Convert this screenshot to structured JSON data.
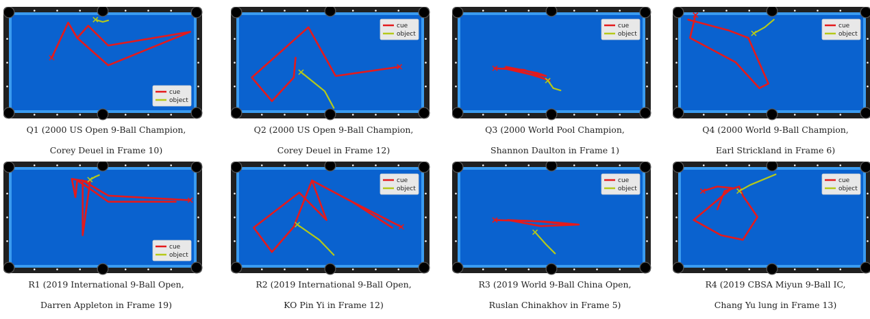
{
  "legend": {
    "cue": "cue",
    "object": "object"
  },
  "colors": {
    "cue": "#e41a1c",
    "object": "#b5c91a",
    "felt": "#0a62cf",
    "cushion": "#3a9bf0",
    "rail": "#202020",
    "pocket": "#000000",
    "diamond": "#ffffff"
  },
  "panels": [
    {
      "id": "Q1",
      "caption_line1": "Q1 (2000 US Open 9-Ball Champion,",
      "caption_line2": "Corey Deuel in Frame 10)",
      "legend_pos": "bottom-right",
      "cue": [
        [
          0.22,
          0.56
        ],
        [
          0.31,
          0.1
        ],
        [
          0.36,
          0.3
        ],
        [
          0.42,
          0.14
        ],
        [
          0.53,
          0.4
        ],
        [
          0.98,
          0.22
        ],
        [
          0.53,
          0.66
        ],
        [
          0.36,
          0.3
        ]
      ],
      "object": [
        [
          0.46,
          0.06
        ],
        [
          0.5,
          0.09
        ],
        [
          0.53,
          0.07
        ]
      ]
    },
    {
      "id": "Q2",
      "caption_line1": "Q2 (2000 US Open 9-Ball Champion,",
      "caption_line2": "Corey Deuel in Frame 12)",
      "legend_pos": "top-right",
      "cue": [
        [
          0.88,
          0.68
        ],
        [
          0.53,
          0.8
        ],
        [
          0.38,
          0.16
        ],
        [
          0.07,
          0.82
        ],
        [
          0.18,
          1.13
        ],
        [
          0.3,
          0.82
        ],
        [
          0.31,
          0.56
        ]
      ],
      "object": [
        [
          0.34,
          0.75
        ],
        [
          0.47,
          1.0
        ],
        [
          0.52,
          1.22
        ]
      ]
    },
    {
      "id": "Q3",
      "caption_line1": "Q3 (2000 World Pool Champion,",
      "caption_line2": "Shannon Daulton in Frame 1)",
      "legend_pos": "top-right",
      "cue": [
        [
          0.19,
          0.7
        ],
        [
          0.35,
          0.72
        ],
        [
          0.42,
          0.78
        ],
        [
          0.47,
          0.8
        ],
        [
          0.42,
          0.76
        ],
        [
          0.25,
          0.68
        ],
        [
          0.44,
          0.82
        ],
        [
          0.49,
          0.86
        ],
        [
          0.42,
          0.8
        ],
        [
          0.24,
          0.7
        ]
      ],
      "object": [
        [
          0.48,
          0.86
        ],
        [
          0.51,
          0.96
        ],
        [
          0.55,
          0.99
        ]
      ]
    },
    {
      "id": "Q4",
      "caption_line1": "Q4 (2000 World 9-Ball Champion,",
      "caption_line2": "Earl Strickland in Frame 6)",
      "legend_pos": "top-right",
      "cue": [
        [
          0.08,
          0.0
        ],
        [
          0.05,
          0.3
        ],
        [
          0.3,
          0.62
        ],
        [
          0.43,
          0.96
        ],
        [
          0.48,
          0.9
        ],
        [
          0.37,
          0.3
        ],
        [
          0.26,
          0.2
        ],
        [
          0.04,
          0.06
        ]
      ],
      "object": [
        [
          0.4,
          0.24
        ],
        [
          0.46,
          0.16
        ],
        [
          0.51,
          0.06
        ]
      ]
    },
    {
      "id": "R1",
      "caption_line1": "R1 (2019 International 9-Ball Open,",
      "caption_line2": "Darren Appleton in Frame 19)",
      "legend_pos": "bottom-right",
      "cue": [
        [
          0.98,
          0.4
        ],
        [
          0.53,
          0.34
        ],
        [
          0.39,
          0.14
        ],
        [
          0.39,
          0.86
        ],
        [
          0.43,
          0.16
        ],
        [
          0.33,
          0.12
        ],
        [
          0.35,
          0.36
        ],
        [
          0.36,
          0.14
        ],
        [
          0.46,
          0.3
        ],
        [
          0.53,
          0.42
        ],
        [
          0.9,
          0.42
        ]
      ],
      "object": [
        [
          0.43,
          0.13
        ],
        [
          0.46,
          0.09
        ],
        [
          0.48,
          0.07
        ]
      ]
    },
    {
      "id": "R2",
      "caption_line1": "R2 (2019 International 9-Ball Open,",
      "caption_line2": "KO Pin Yi in Frame 12)",
      "legend_pos": "top-right",
      "cue": [
        [
          0.89,
          0.75
        ],
        [
          0.62,
          0.42
        ],
        [
          0.4,
          0.14
        ],
        [
          0.48,
          0.66
        ],
        [
          0.33,
          0.3
        ],
        [
          0.08,
          0.76
        ],
        [
          0.18,
          1.08
        ],
        [
          0.3,
          0.75
        ],
        [
          0.4,
          0.14
        ],
        [
          0.62,
          0.42
        ],
        [
          0.84,
          0.76
        ]
      ],
      "object": [
        [
          0.32,
          0.72
        ],
        [
          0.44,
          0.92
        ],
        [
          0.52,
          1.12
        ]
      ]
    },
    {
      "id": "R3",
      "caption_line1": "R3 (2019 World 9-Ball China Open,",
      "caption_line2": "Ruslan Chinakhov in Frame 5)",
      "legend_pos": "top-right",
      "cue": [
        [
          0.19,
          0.66
        ],
        [
          0.46,
          0.68
        ],
        [
          0.65,
          0.72
        ],
        [
          0.44,
          0.74
        ],
        [
          0.26,
          0.66
        ],
        [
          0.44,
          0.68
        ],
        [
          0.6,
          0.72
        ]
      ],
      "object": [
        [
          0.41,
          0.82
        ],
        [
          0.47,
          0.98
        ],
        [
          0.52,
          1.1
        ]
      ]
    },
    {
      "id": "R4",
      "caption_line1": "R4 (2019 CBSA Miyun 9-Ball IC,",
      "caption_line2": "Chang Yu lung in Frame 13)",
      "legend_pos": "top-right",
      "cue": [
        [
          0.12,
          0.28
        ],
        [
          0.2,
          0.22
        ],
        [
          0.28,
          0.24
        ],
        [
          0.22,
          0.36
        ],
        [
          0.07,
          0.66
        ],
        [
          0.22,
          0.86
        ],
        [
          0.34,
          0.92
        ],
        [
          0.42,
          0.62
        ],
        [
          0.34,
          0.34
        ],
        [
          0.32,
          0.22
        ],
        [
          0.24,
          0.28
        ],
        [
          0.2,
          0.52
        ]
      ],
      "object": [
        [
          0.32,
          0.28
        ],
        [
          0.38,
          0.2
        ],
        [
          0.52,
          0.06
        ]
      ]
    }
  ]
}
